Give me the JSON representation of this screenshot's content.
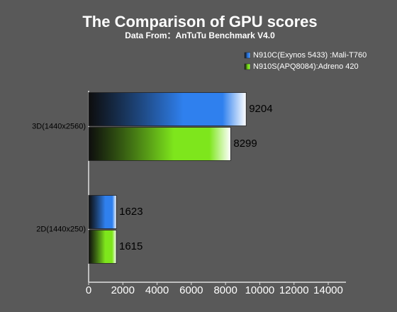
{
  "chart_data": {
    "type": "hbar",
    "title": "The Comparison of GPU scores",
    "subtitle": "Data From：AnTuTu Benchmark V4.0",
    "categories": [
      "3D(1440x2560)",
      "2D(1440x250)"
    ],
    "series": [
      {
        "name": "N910C(Exynos 5433) :Mali-T760",
        "color": "#2f80ee",
        "values": [
          9204,
          1623
        ]
      },
      {
        "name": "N910S(APQ8084):Adreno 420",
        "color": "#7ee61c",
        "values": [
          8299,
          1615
        ]
      }
    ],
    "xlim": [
      0,
      14000
    ],
    "xticks": [
      0,
      2000,
      4000,
      6000,
      8000,
      10000,
      12000,
      14000
    ]
  }
}
